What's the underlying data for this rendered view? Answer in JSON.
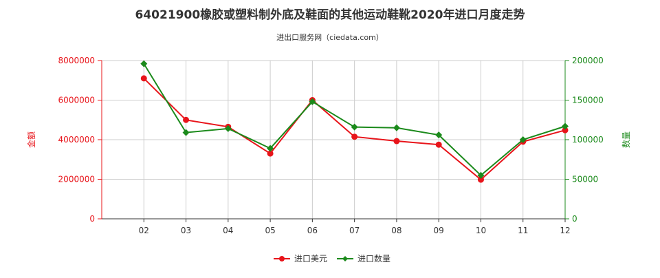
{
  "chart_data": {
    "type": "line",
    "title": "64021900橡胶或塑料制外底及鞋面的其他运动鞋靴2020年进口月度走势",
    "subtitle": "进出口服务网（ciedata.com）",
    "categories": [
      "02",
      "03",
      "04",
      "05",
      "06",
      "07",
      "08",
      "09",
      "10",
      "11",
      "12"
    ],
    "series": [
      {
        "name": "进口美元",
        "axis": "left",
        "color": "#e8141a",
        "values": [
          7100000,
          5000000,
          4650000,
          3300000,
          6000000,
          4150000,
          3930000,
          3750000,
          1980000,
          3900000,
          4480000
        ]
      },
      {
        "name": "进口数量",
        "axis": "right",
        "color": "#1b8a1b",
        "values": [
          196000,
          109000,
          114000,
          89000,
          148000,
          116000,
          115000,
          106000,
          55000,
          100000,
          117000
        ]
      }
    ],
    "y_left": {
      "label": "金额",
      "range": [
        0,
        8000000
      ],
      "ticks": [
        "0",
        "2000000",
        "4000000",
        "6000000",
        "8000000"
      ],
      "color": "#e8141a"
    },
    "y_right": {
      "label": "数量",
      "range": [
        0,
        200000
      ],
      "ticks": [
        "0",
        "50000",
        "100000",
        "150000",
        "200000"
      ],
      "color": "#1b8a1b"
    },
    "grid": true,
    "legend_position": "bottom-center"
  }
}
